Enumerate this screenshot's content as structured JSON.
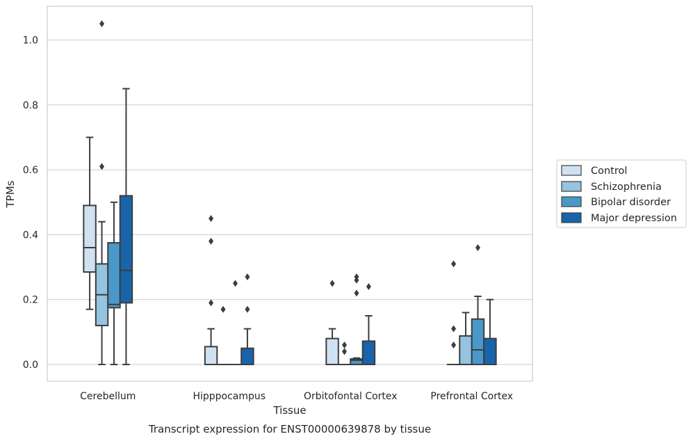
{
  "chart_data": {
    "type": "boxplot",
    "caption": "Transcript expression for ENST00000639878 by tissue",
    "xlabel": "Tissue",
    "ylabel": "TPMs",
    "ylim": [
      -0.05,
      1.1
    ],
    "yticks": [
      0.0,
      0.2,
      0.4,
      0.6,
      0.8,
      1.0
    ],
    "ytick_labels": [
      "0.0",
      "0.2",
      "0.4",
      "0.6",
      "0.8",
      "1.0"
    ],
    "grid": "horizontal",
    "legend_position": "right",
    "categories": [
      "Cerebellum",
      "Hipppocampus",
      "Orbitofontal Cortex",
      "Prefrontal Cortex"
    ],
    "series": [
      {
        "name": "Control",
        "color": "#d0e1f2",
        "boxes": [
          {
            "q1": 0.285,
            "median": 0.36,
            "q3": 0.49,
            "whisker_low": 0.17,
            "whisker_high": 0.7,
            "outliers": []
          },
          {
            "q1": 0.0,
            "median": 0.0,
            "q3": 0.055,
            "whisker_low": 0.0,
            "whisker_high": 0.11,
            "outliers": [
              0.45,
              0.38,
              0.19
            ]
          },
          {
            "q1": 0.0,
            "median": 0.0,
            "q3": 0.08,
            "whisker_low": 0.0,
            "whisker_high": 0.11,
            "outliers": [
              0.25
            ]
          },
          {
            "q1": 0.0,
            "median": 0.0,
            "q3": 0.0,
            "whisker_low": 0.0,
            "whisker_high": 0.0,
            "outliers": [
              0.31,
              0.11,
              0.06
            ]
          }
        ]
      },
      {
        "name": "Schizophrenia",
        "color": "#94c4df",
        "boxes": [
          {
            "q1": 0.12,
            "median": 0.215,
            "q3": 0.31,
            "whisker_low": 0.0,
            "whisker_high": 0.44,
            "outliers": [
              1.05,
              0.61
            ]
          },
          {
            "q1": 0.0,
            "median": 0.0,
            "q3": 0.0,
            "whisker_low": 0.0,
            "whisker_high": 0.0,
            "outliers": [
              0.17
            ]
          },
          {
            "q1": 0.0,
            "median": 0.0,
            "q3": 0.0,
            "whisker_low": 0.0,
            "whisker_high": 0.0,
            "outliers": [
              0.06,
              0.04
            ]
          },
          {
            "q1": 0.0,
            "median": 0.0,
            "q3": 0.088,
            "whisker_low": 0.0,
            "whisker_high": 0.16,
            "outliers": []
          }
        ]
      },
      {
        "name": "Bipolar disorder",
        "color": "#4a98c9",
        "boxes": [
          {
            "q1": 0.175,
            "median": 0.185,
            "q3": 0.375,
            "whisker_low": 0.0,
            "whisker_high": 0.5,
            "outliers": []
          },
          {
            "q1": 0.0,
            "median": 0.0,
            "q3": 0.0,
            "whisker_low": 0.0,
            "whisker_high": 0.0,
            "outliers": [
              0.25
            ]
          },
          {
            "q1": 0.0,
            "median": 0.013,
            "q3": 0.017,
            "whisker_low": 0.0,
            "whisker_high": 0.02,
            "outliers": [
              0.27,
              0.26,
              0.22
            ]
          },
          {
            "q1": 0.0,
            "median": 0.045,
            "q3": 0.14,
            "whisker_low": 0.0,
            "whisker_high": 0.21,
            "outliers": [
              0.36
            ]
          }
        ]
      },
      {
        "name": "Major depression",
        "color": "#1764ab",
        "boxes": [
          {
            "q1": 0.19,
            "median": 0.29,
            "q3": 0.52,
            "whisker_low": 0.0,
            "whisker_high": 0.85,
            "outliers": []
          },
          {
            "q1": 0.0,
            "median": 0.0,
            "q3": 0.05,
            "whisker_low": 0.0,
            "whisker_high": 0.11,
            "outliers": [
              0.27,
              0.17
            ]
          },
          {
            "q1": 0.0,
            "median": 0.0,
            "q3": 0.072,
            "whisker_low": 0.0,
            "whisker_high": 0.15,
            "outliers": [
              0.24
            ]
          },
          {
            "q1": 0.0,
            "median": 0.0,
            "q3": 0.08,
            "whisker_low": 0.0,
            "whisker_high": 0.2,
            "outliers": []
          }
        ]
      }
    ]
  }
}
